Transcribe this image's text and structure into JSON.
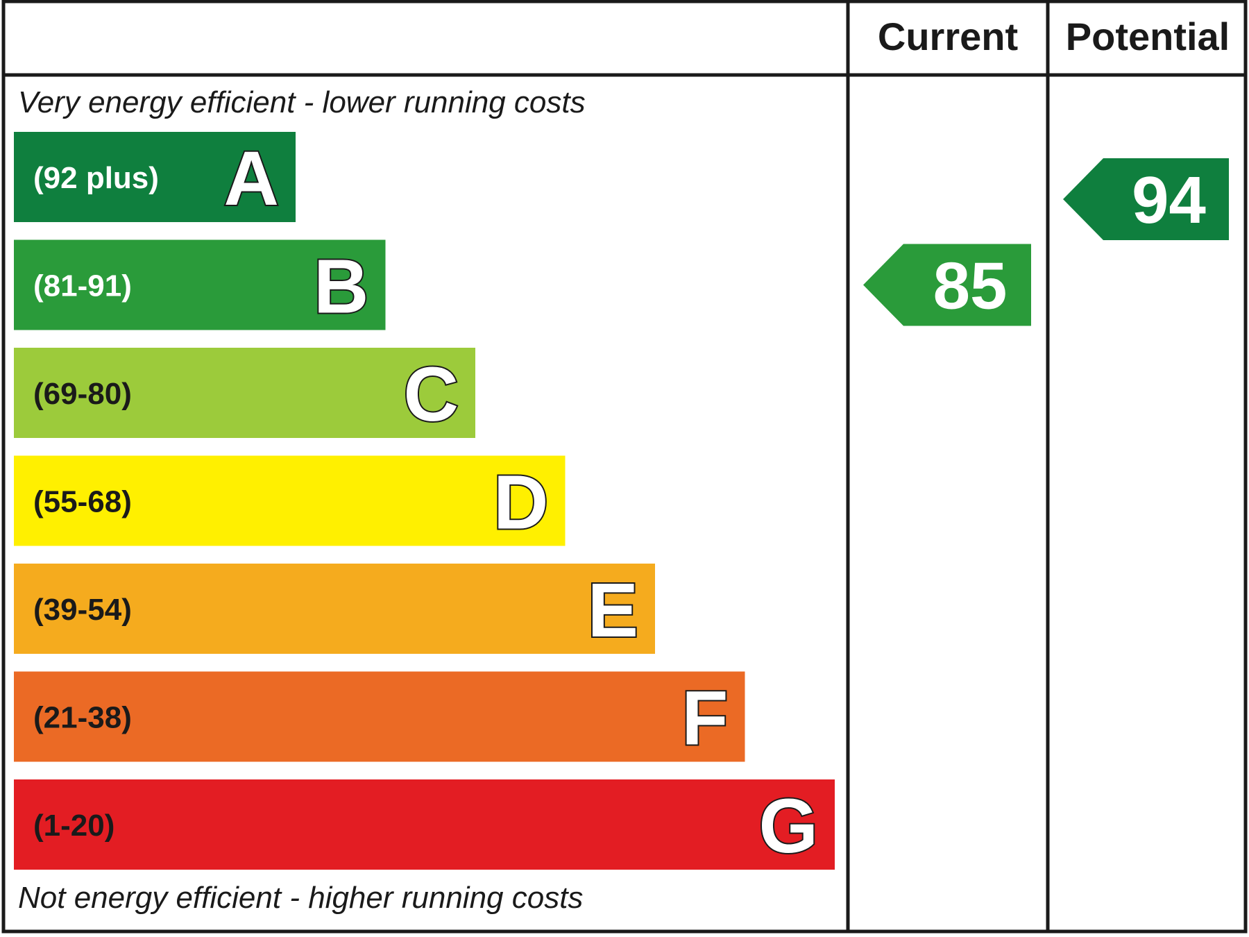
{
  "chart_data": {
    "type": "bar",
    "columns": {
      "current_label": "Current",
      "potential_label": "Potential"
    },
    "top_note": "Very energy efficient - lower running costs",
    "bottom_note": "Not energy efficient - higher running costs",
    "bands": [
      {
        "letter": "A",
        "range": "(92 plus)",
        "min": 92,
        "color": "#0f7f3e",
        "range_text_color": "#ffffff"
      },
      {
        "letter": "B",
        "range": "(81-91)",
        "min": 81,
        "color": "#2a9b3a",
        "range_text_color": "#ffffff"
      },
      {
        "letter": "C",
        "range": "(69-80)",
        "min": 69,
        "color": "#9ccb3b",
        "range_text_color": "#1a1a1a"
      },
      {
        "letter": "D",
        "range": "(55-68)",
        "min": 55,
        "color": "#fff000",
        "range_text_color": "#1a1a1a"
      },
      {
        "letter": "E",
        "range": "(39-54)",
        "min": 39,
        "color": "#f5ab1e",
        "range_text_color": "#1a1a1a"
      },
      {
        "letter": "F",
        "range": "(21-38)",
        "min": 21,
        "color": "#eb6a25",
        "range_text_color": "#1a1a1a"
      },
      {
        "letter": "G",
        "range": "(1-20)",
        "min": 1,
        "color": "#e31d23",
        "range_text_color": "#1a1a1a"
      }
    ],
    "current": {
      "value": 85,
      "band": "B",
      "color": "#2a9b3a"
    },
    "potential": {
      "value": 94,
      "band": "A",
      "color": "#0f7f3e"
    }
  }
}
